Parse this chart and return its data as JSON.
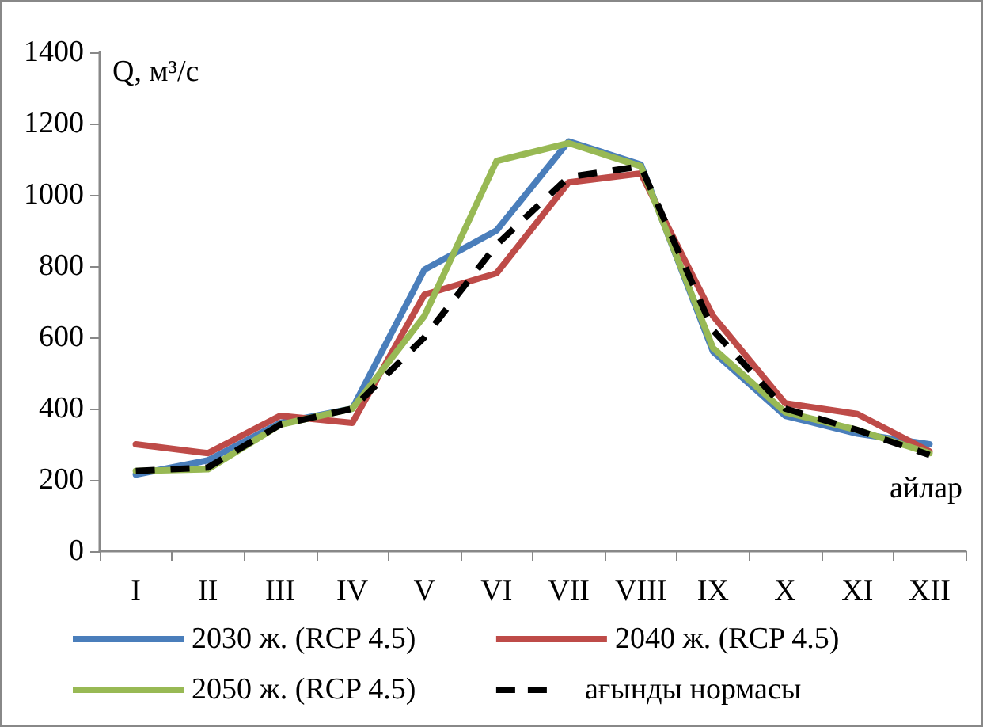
{
  "chart_data": {
    "type": "line",
    "ylabel": "Q, м³/с",
    "xlabel": "айлар",
    "categories": [
      "I",
      "II",
      "III",
      "IV",
      "V",
      "VI",
      "VII",
      "VIII",
      "IX",
      "X",
      "XI",
      "XII"
    ],
    "series": [
      {
        "name": "2030 ж. (RCP 4.5)",
        "color": "#4a7ebb",
        "values": [
          215,
          255,
          360,
          400,
          790,
          900,
          1150,
          1085,
          560,
          380,
          330,
          300
        ]
      },
      {
        "name": "2040 ж. (RCP 4.5)",
        "color": "#be4b48",
        "values": [
          300,
          275,
          380,
          360,
          720,
          780,
          1035,
          1060,
          660,
          415,
          385,
          280
        ]
      },
      {
        "name": "2050 ж. (RCP 4.5)",
        "color": "#98b954",
        "values": [
          225,
          230,
          355,
          400,
          660,
          1095,
          1145,
          1080,
          570,
          390,
          340,
          275
        ]
      },
      {
        "name": "ағынды нормасы",
        "color": "#000000",
        "line_style": "dashed",
        "values": [
          225,
          235,
          355,
          400,
          600,
          860,
          1050,
          1080,
          620,
          400,
          340,
          270
        ]
      }
    ],
    "ylim": [
      0,
      1400
    ],
    "yticks": [
      0,
      200,
      400,
      600,
      800,
      1000,
      1200,
      1400
    ],
    "grid": false,
    "legend": "bottom",
    "marker": "none",
    "line_style": "solid"
  }
}
